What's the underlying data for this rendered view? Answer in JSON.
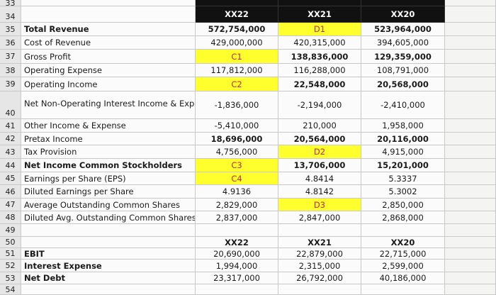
{
  "header": {
    "row_number_top": "33",
    "row_number": "34",
    "columns": [
      "XX22",
      "XX21",
      "XX20"
    ]
  },
  "rows": [
    {
      "number": "35",
      "label": "Total Revenue",
      "values": [
        "572,754,000",
        "D1",
        "523,964,000"
      ]
    },
    {
      "number": "36",
      "label": "Cost of Revenue",
      "values": [
        "429,000,000",
        "420,315,000",
        "394,605,000"
      ]
    },
    {
      "number": "37",
      "label": "Gross Profit",
      "values": [
        "C1",
        "138,836,000",
        "129,359,000"
      ]
    },
    {
      "number": "38",
      "label": "Operating Expense",
      "values": [
        "117,812,000",
        "116,288,000",
        "108,791,000"
      ]
    },
    {
      "number": "39",
      "label": "Operating Income",
      "values": [
        "C2",
        "22,548,000",
        "20,568,000"
      ]
    },
    {
      "number": "40",
      "label": "Net Non-Operating Interest Income & Expense",
      "values": [
        "-1,836,000",
        "-2,194,000",
        "-2,410,000"
      ]
    },
    {
      "number": "41",
      "label": "Other Income & Expense",
      "values": [
        "-5,410,000",
        "210,000",
        "1,958,000"
      ]
    },
    {
      "number": "42",
      "label": "Pretax Income",
      "values": [
        "18,696,000",
        "20,564,000",
        "20,116,000"
      ]
    },
    {
      "number": "43",
      "label": "Tax Provision",
      "values": [
        "4,756,000",
        "D2",
        "4,915,000"
      ]
    },
    {
      "number": "44",
      "label": "Net Income Common Stockholders",
      "values": [
        "C3",
        "13,706,000",
        "15,201,000"
      ]
    },
    {
      "number": "45",
      "label": "Earnings per Share (EPS)",
      "values": [
        "C4",
        "4.8414",
        "5.3337"
      ]
    },
    {
      "number": "46",
      "label": "Diluted Earnings per Share",
      "values": [
        "4.9136",
        "4.8142",
        "5.3002"
      ]
    },
    {
      "number": "47",
      "label": "Average Outstanding Common Shares",
      "values": [
        "2,829,000",
        "D3",
        "2,850,000"
      ]
    },
    {
      "number": "48",
      "label": "Diluted Avg. Outstanding Common Shares",
      "values": [
        "2,837,000",
        "2,847,000",
        "2,868,000"
      ]
    }
  ],
  "empty_row": "49",
  "lower": {
    "header_number": "50",
    "columns": [
      "XX22",
      "XX21",
      "XX20"
    ],
    "rows": [
      {
        "number": "51",
        "label": "EBIT",
        "values": [
          "20,690,000",
          "22,879,000",
          "22,715,000"
        ]
      },
      {
        "number": "52",
        "label": "Interest Expense",
        "values": [
          "1,994,000",
          "2,315,000",
          "2,599,000"
        ]
      },
      {
        "number": "53",
        "label": "Net Debt",
        "values": [
          "23,317,000",
          "26,792,000",
          "40,186,000"
        ]
      }
    ]
  },
  "last_row": "54"
}
